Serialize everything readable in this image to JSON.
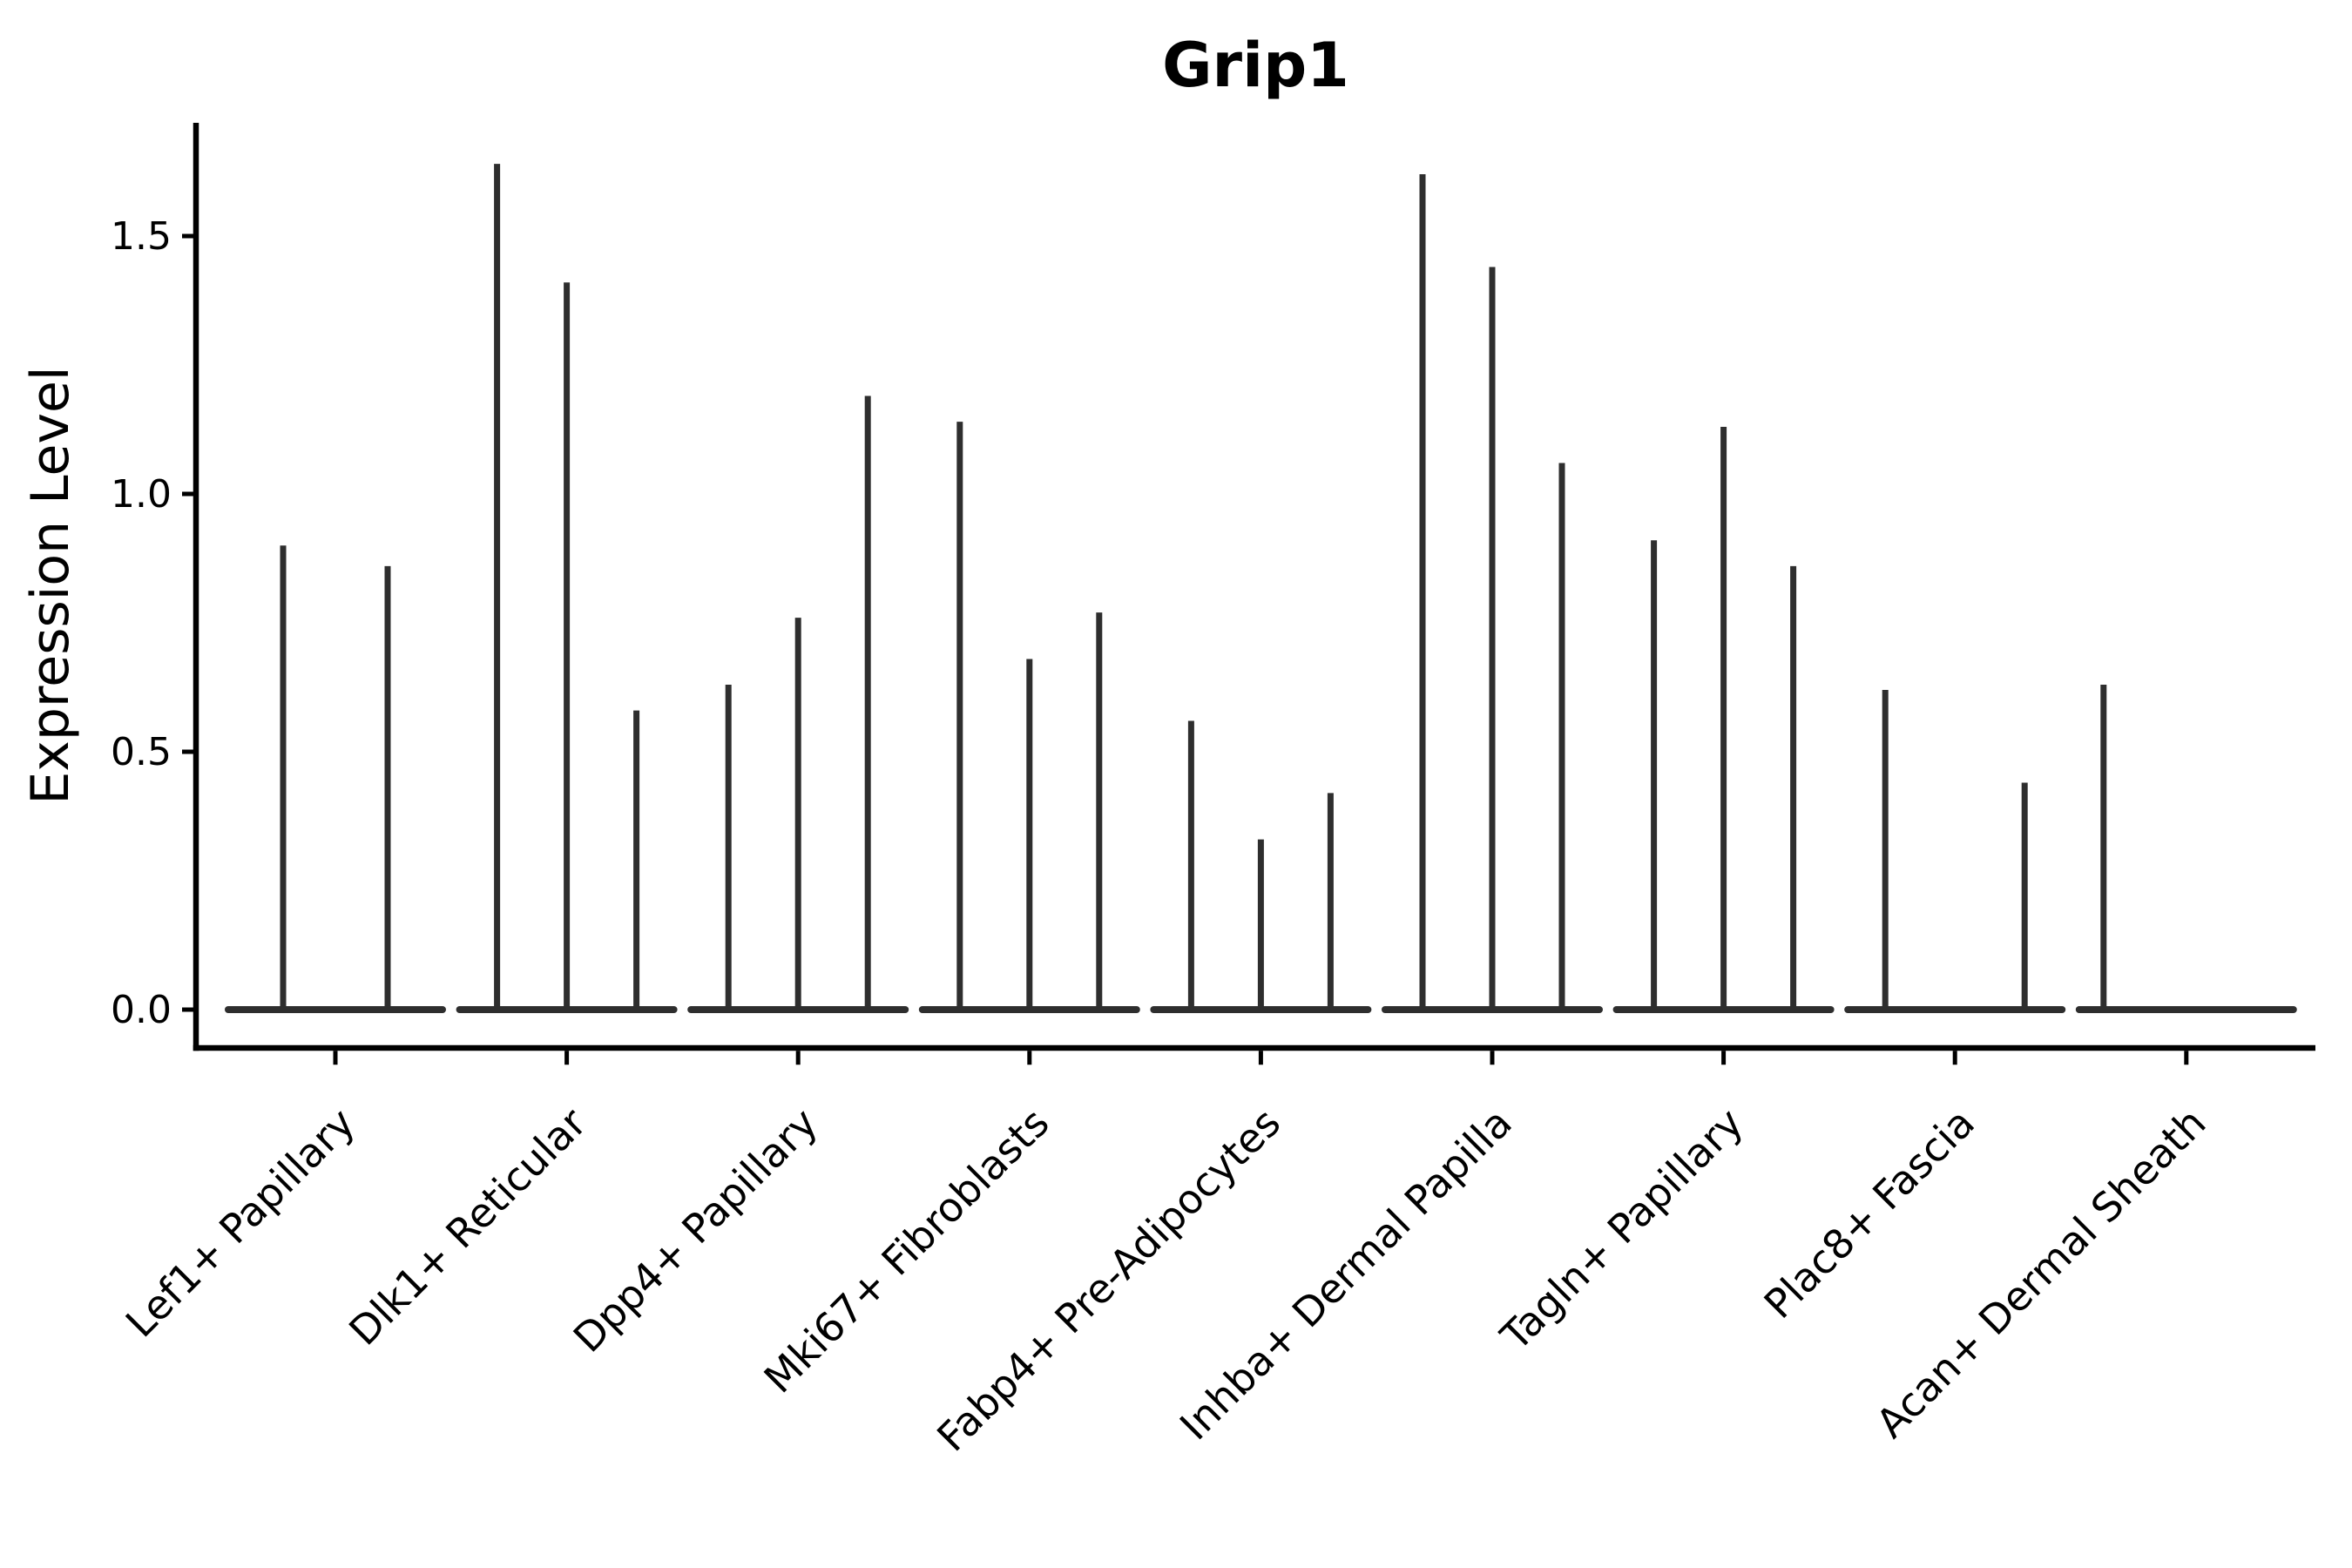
{
  "chart_data": {
    "type": "violin",
    "title": "Grip1",
    "ylabel": "Expression Level",
    "xlabel": "",
    "grid": false,
    "legend_position": "none",
    "ylim": [
      -0.08,
      1.73
    ],
    "ytick_values": [
      0.0,
      0.5,
      1.0,
      1.5
    ],
    "ytick_labels": [
      "0.0",
      "0.5",
      "1.0",
      "1.5"
    ],
    "categories": [
      "Lef1+ Papillary",
      "Dlk1+ Reticular",
      "Dpp4+ Papillary",
      "Mki67+ Fibroblasts",
      "Fabp4+ Pre-Adipocytes",
      "Inhba+ Dermal Papilla",
      "Tagln+ Papillary",
      "Plac8+ Fascia",
      "Acan+ Dermal Sheath"
    ],
    "groups": [
      {
        "category": "Lef1+ Papillary",
        "violins": [
          {
            "offset": -60,
            "max": 0.9
          },
          {
            "offset": 60,
            "max": 0.86
          }
        ]
      },
      {
        "category": "Dlk1+ Reticular",
        "violins": [
          {
            "offset": -80,
            "max": 1.64
          },
          {
            "offset": 0,
            "max": 1.41
          },
          {
            "offset": 80,
            "max": 0.58
          }
        ]
      },
      {
        "category": "Dpp4+ Papillary",
        "violins": [
          {
            "offset": -80,
            "max": 0.63
          },
          {
            "offset": 0,
            "max": 0.76
          },
          {
            "offset": 80,
            "max": 1.19
          }
        ]
      },
      {
        "category": "Mki67+ Fibroblasts",
        "violins": [
          {
            "offset": -80,
            "max": 1.14
          },
          {
            "offset": 0,
            "max": 0.68
          },
          {
            "offset": 80,
            "max": 0.77
          }
        ]
      },
      {
        "category": "Fabp4+ Pre-Adipocytes",
        "violins": [
          {
            "offset": -80,
            "max": 0.56
          },
          {
            "offset": 0,
            "max": 0.33
          },
          {
            "offset": 80,
            "max": 0.42
          }
        ]
      },
      {
        "category": "Inhba+ Dermal Papilla",
        "violins": [
          {
            "offset": -80,
            "max": 1.62
          },
          {
            "offset": 0,
            "max": 1.44
          },
          {
            "offset": 80,
            "max": 1.06
          }
        ]
      },
      {
        "category": "Tagln+ Papillary",
        "violins": [
          {
            "offset": -80,
            "max": 0.91
          },
          {
            "offset": 0,
            "max": 1.13
          },
          {
            "offset": 80,
            "max": 0.86
          }
        ]
      },
      {
        "category": "Plac8+ Fascia",
        "violins": [
          {
            "offset": -80,
            "max": 0.62
          },
          {
            "offset": 0,
            "max": 0.0
          },
          {
            "offset": 80,
            "max": 0.44
          }
        ]
      },
      {
        "category": "Acan+ Dermal Sheath",
        "violins": [
          {
            "offset": -95,
            "max": 0.63
          },
          {
            "offset": 0,
            "max": 0.0
          },
          {
            "offset": 95,
            "max": 0.0
          }
        ]
      }
    ],
    "colors": {
      "violin_line": "#2e2e2e",
      "axis_line": "#000000",
      "text": "#000000",
      "background": "#ffffff"
    }
  }
}
